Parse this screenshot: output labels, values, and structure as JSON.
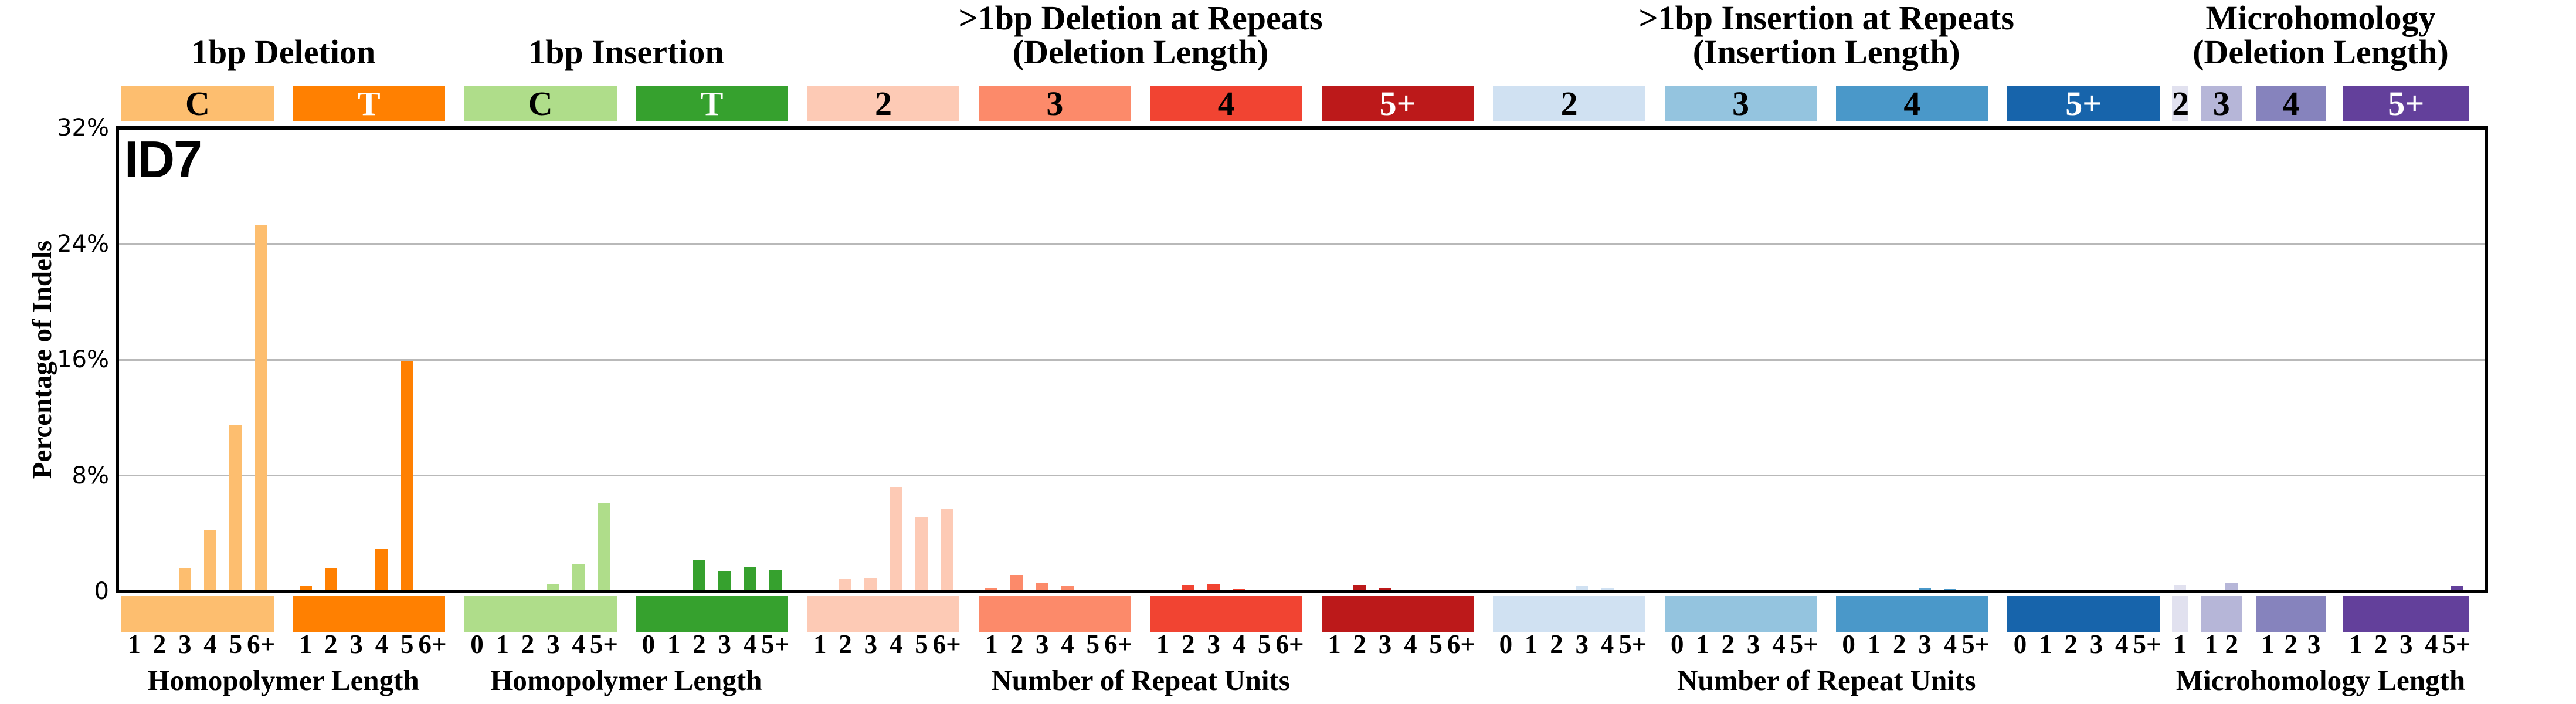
{
  "chart_data": {
    "type": "bar",
    "signature_label": "ID7",
    "ylabel": "Percentage of Indels",
    "ylim": [
      0,
      32
    ],
    "grid": "horizontal",
    "grid_color": "#B9B9B9",
    "border_color": "#000000",
    "background_color": "#FFFFFF",
    "yticks": [
      {
        "label": "32%",
        "value": 32
      },
      {
        "label": "24%",
        "value": 24
      },
      {
        "label": "16%",
        "value": 16
      },
      {
        "label": "8%",
        "value": 8
      },
      {
        "label": "0",
        "value": 0
      }
    ],
    "groups": [
      {
        "title_lines": [
          "1bp Deletion"
        ],
        "axis_label": "Homopolymer Length",
        "block_indices": [
          0,
          1
        ]
      },
      {
        "title_lines": [
          "1bp Insertion"
        ],
        "axis_label": "Homopolymer Length",
        "block_indices": [
          2,
          3
        ]
      },
      {
        "title_lines": [
          ">1bp Deletion at Repeats",
          "(Deletion Length)"
        ],
        "axis_label": "Number of Repeat Units",
        "block_indices": [
          4,
          5,
          6,
          7
        ]
      },
      {
        "title_lines": [
          ">1bp Insertion at Repeats",
          "(Insertion Length)"
        ],
        "axis_label": "Number of Repeat Units",
        "block_indices": [
          8,
          9,
          10,
          11
        ]
      },
      {
        "title_lines": [
          "Microhomology",
          "(Deletion Length)"
        ],
        "axis_label": "Microhomology Length",
        "block_indices": [
          12,
          13,
          14,
          15
        ]
      }
    ],
    "blocks": [
      {
        "key": "1bp-deletion-C",
        "box_label": "C",
        "color": "#FDBE6F",
        "box_text_color": "#000000",
        "categories": [
          "1",
          "2",
          "3",
          "4",
          "5",
          "6+"
        ],
        "values": [
          0.1,
          0.02,
          1.6,
          4.2,
          11.5,
          25.3
        ]
      },
      {
        "key": "1bp-deletion-T",
        "box_label": "T",
        "color": "#FF8001",
        "box_text_color": "#FFFFFF",
        "categories": [
          "1",
          "2",
          "3",
          "4",
          "5",
          "6+"
        ],
        "values": [
          0.35,
          1.6,
          0.08,
          2.9,
          15.9,
          0.02
        ]
      },
      {
        "key": "1bp-insertion-C",
        "box_label": "C",
        "color": "#AFDD8A",
        "box_text_color": "#000000",
        "categories": [
          "0",
          "1",
          "2",
          "3",
          "4",
          "5+"
        ],
        "values": [
          0.02,
          0.03,
          0.05,
          0.5,
          1.9,
          6.1
        ]
      },
      {
        "key": "1bp-insertion-T",
        "box_label": "T",
        "color": "#36A12E",
        "box_text_color": "#FFFFFF",
        "categories": [
          "0",
          "1",
          "2",
          "3",
          "4",
          "5+"
        ],
        "values": [
          0.02,
          0.1,
          2.2,
          1.4,
          1.7,
          1.5
        ]
      },
      {
        "key": "deletion-repeats-2",
        "box_label": "2",
        "color": "#FDCAB5",
        "box_text_color": "#000000",
        "categories": [
          "1",
          "2",
          "3",
          "4",
          "5",
          "6+"
        ],
        "values": [
          0.02,
          0.85,
          0.9,
          7.2,
          5.1,
          5.7
        ]
      },
      {
        "key": "deletion-repeats-3",
        "box_label": "3",
        "color": "#FC8A6A",
        "box_text_color": "#000000",
        "categories": [
          "1",
          "2",
          "3",
          "4",
          "5",
          "6+"
        ],
        "values": [
          0.2,
          1.15,
          0.55,
          0.35,
          0.1,
          0.1
        ]
      },
      {
        "key": "deletion-repeats-4",
        "box_label": "4",
        "color": "#F14432",
        "box_text_color": "#000000",
        "categories": [
          "1",
          "2",
          "3",
          "4",
          "5",
          "6+"
        ],
        "values": [
          0.02,
          0.45,
          0.48,
          0.15,
          0.03,
          0.1
        ]
      },
      {
        "key": "deletion-repeats-5+",
        "box_label": "5+",
        "color": "#BC191A",
        "box_text_color": "#FFFFFF",
        "categories": [
          "1",
          "2",
          "3",
          "4",
          "5",
          "6+"
        ],
        "values": [
          0.02,
          0.45,
          0.2,
          0.08,
          0.02,
          0.02
        ]
      },
      {
        "key": "insertion-repeats-2",
        "box_label": "2",
        "color": "#D0E1F2",
        "box_text_color": "#000000",
        "categories": [
          "0",
          "1",
          "2",
          "3",
          "4",
          "5+"
        ],
        "values": [
          0.02,
          0.08,
          0.03,
          0.38,
          0.2,
          0.05
        ]
      },
      {
        "key": "insertion-repeats-3",
        "box_label": "3",
        "color": "#94C4DF",
        "box_text_color": "#000000",
        "categories": [
          "0",
          "1",
          "2",
          "3",
          "4",
          "5+"
        ],
        "values": [
          0.02,
          0.02,
          0.02,
          0.05,
          0.1,
          0.12
        ]
      },
      {
        "key": "insertion-repeats-4",
        "box_label": "4",
        "color": "#4A98C9",
        "box_text_color": "#000000",
        "categories": [
          "0",
          "1",
          "2",
          "3",
          "4",
          "5+"
        ],
        "values": [
          0.02,
          0.02,
          0.02,
          0.2,
          0.18,
          0.03
        ]
      },
      {
        "key": "insertion-repeats-5+",
        "box_label": "5+",
        "color": "#1764AB",
        "box_text_color": "#FFFFFF",
        "categories": [
          "0",
          "1",
          "2",
          "3",
          "4",
          "5+"
        ],
        "values": [
          0.02,
          0.02,
          0.02,
          0.02,
          0.02,
          0.02
        ]
      },
      {
        "key": "microhomology-2",
        "box_label": "2",
        "color": "#E1E1EF",
        "box_text_color": "#000000",
        "categories": [
          "1"
        ],
        "values": [
          0.4
        ]
      },
      {
        "key": "microhomology-3",
        "box_label": "3",
        "color": "#B6B6D8",
        "box_text_color": "#000000",
        "categories": [
          "1",
          "2"
        ],
        "values": [
          0.1,
          0.6
        ]
      },
      {
        "key": "microhomology-4",
        "box_label": "4",
        "color": "#8683BD",
        "box_text_color": "#000000",
        "categories": [
          "1",
          "2",
          "3"
        ],
        "values": [
          0.03,
          0.12,
          0.14
        ]
      },
      {
        "key": "microhomology-5+",
        "box_label": "5+",
        "color": "#63409B",
        "box_text_color": "#FFFFFF",
        "categories": [
          "1",
          "2",
          "3",
          "4",
          "5+"
        ],
        "values": [
          0.02,
          0.08,
          0.03,
          0.02,
          0.35
        ]
      }
    ]
  }
}
